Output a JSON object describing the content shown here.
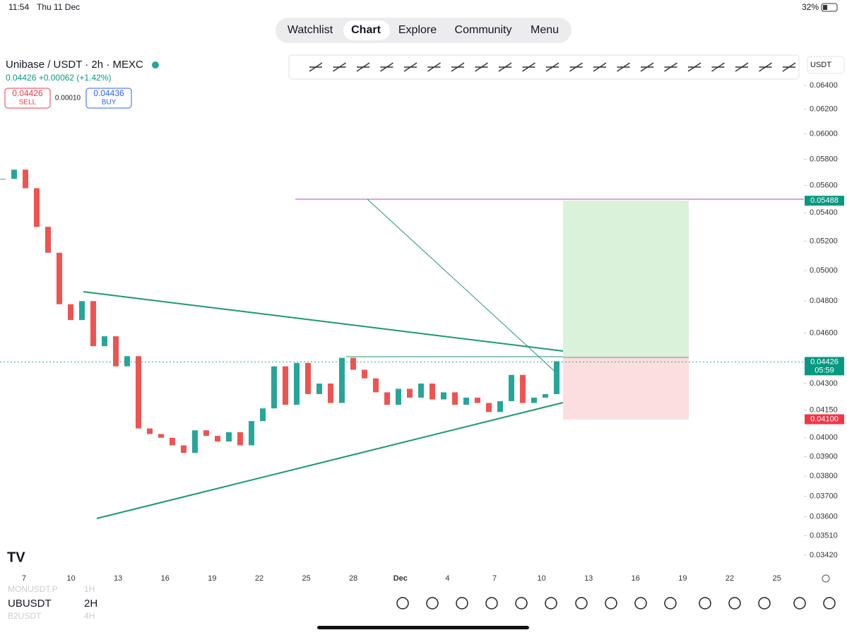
{
  "status_bar": {
    "time": "11:54",
    "date": "Thu 11 Dec",
    "battery": "32%"
  },
  "nav": {
    "tabs": [
      "Watchlist",
      "Chart",
      "Explore",
      "Community",
      "Menu"
    ],
    "active": 1
  },
  "symbol": {
    "name": "Unibase / USDT · 2h · MEXC",
    "quote": "0.04426 +0.00062 (+1.42%)",
    "sell_price": "0.04426",
    "sell_label": "SELL",
    "spread": "0.00010",
    "buy_price": "0.04436",
    "buy_label": "BUY",
    "currency": "USDT"
  },
  "chart": {
    "log_scale": true,
    "ylim": [
      0.0342,
      0.064
    ],
    "yticks": [
      {
        "value": 0.064,
        "label": "0.06400"
      },
      {
        "value": 0.062,
        "label": "0.06200"
      },
      {
        "value": 0.06,
        "label": "0.06000"
      },
      {
        "value": 0.058,
        "label": "0.05800"
      },
      {
        "value": 0.056,
        "label": "0.05600"
      },
      {
        "value": 0.054,
        "label": "0.05400"
      },
      {
        "value": 0.052,
        "label": "0.05200"
      },
      {
        "value": 0.05,
        "label": "0.05000"
      },
      {
        "value": 0.048,
        "label": "0.04800"
      },
      {
        "value": 0.046,
        "label": "0.04600"
      },
      {
        "value": 0.043,
        "label": "0.04300"
      },
      {
        "value": 0.0415,
        "label": "0.04150"
      },
      {
        "value": 0.04,
        "label": "0.04000"
      },
      {
        "value": 0.039,
        "label": "0.03900"
      },
      {
        "value": 0.038,
        "label": "0.03800"
      },
      {
        "value": 0.037,
        "label": "0.03700"
      },
      {
        "value": 0.036,
        "label": "0.03600"
      },
      {
        "value": 0.0351,
        "label": "0.03510"
      },
      {
        "value": 0.0342,
        "label": "0.03420"
      }
    ],
    "date_labels": [
      "7",
      "10",
      "13",
      "16",
      "19",
      "22",
      "25",
      "28",
      "Dec",
      "4",
      "7",
      "10",
      "13",
      "16",
      "19",
      "22",
      "25"
    ],
    "closes": [
      0.0565,
      0.0572,
      0.0558,
      0.053,
      0.0512,
      0.0478,
      0.0468,
      0.048,
      0.0452,
      0.0458,
      0.044,
      0.0446,
      0.0405,
      0.0402,
      0.04,
      0.0396,
      0.0392,
      0.0404,
      0.0401,
      0.0398,
      0.0403,
      0.0396,
      0.0409,
      0.0416,
      0.044,
      0.0418,
      0.0442,
      0.0424,
      0.043,
      0.0419,
      0.0445,
      0.0438,
      0.0433,
      0.0425,
      0.0418,
      0.0427,
      0.0422,
      0.043,
      0.0421,
      0.0425,
      0.0418,
      0.0422,
      0.0419,
      0.0414,
      0.042,
      0.0435,
      0.0419,
      0.0422,
      0.0424,
      0.0443
    ],
    "up_color": "#26a69a",
    "down_color": "#ef5350",
    "target": {
      "value": 0.05488,
      "label": "0.05488"
    },
    "last": {
      "value": 0.04426,
      "label": "0.04426",
      "countdown": "05:59"
    },
    "stop": {
      "value": 0.041,
      "label": "0.04100"
    }
  },
  "bottom_bar": {
    "symbols": [
      {
        "name": "MONUSDT.P",
        "interval": "1H"
      },
      {
        "name": "UBUSDT",
        "interval": "2H"
      },
      {
        "name": "B2USDT",
        "interval": "4H"
      }
    ]
  }
}
